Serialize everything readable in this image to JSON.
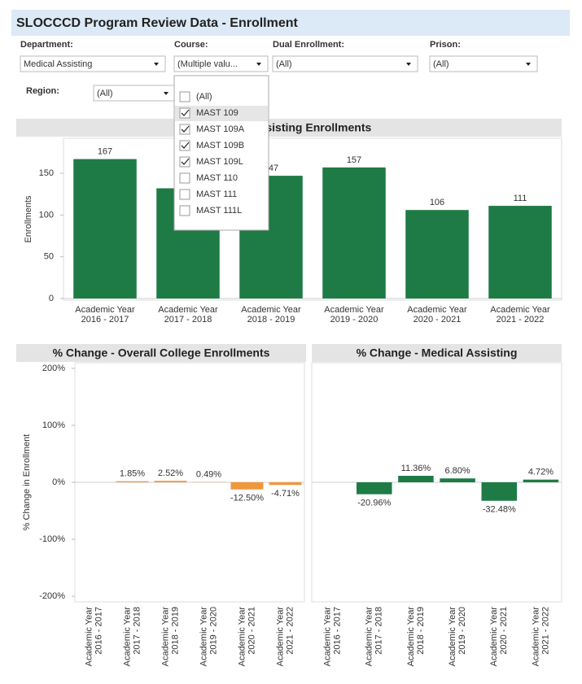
{
  "header": {
    "title": "SLOCCCD Program Review Data - Enrollment"
  },
  "filters": [
    {
      "label": "Department:",
      "value": "Medical Assisting"
    },
    {
      "label": "Course:",
      "value": "(Multiple valu..."
    },
    {
      "label": "Dual Enrollment:",
      "value": "(All)"
    },
    {
      "label": "Prison:",
      "value": "(All)"
    },
    {
      "label": "Region:",
      "value": "(All)"
    }
  ],
  "dropdown": {
    "items": [
      {
        "label": "(All)",
        "checked": false
      },
      {
        "label": "MAST 109",
        "checked": true
      },
      {
        "label": "MAST 109A",
        "checked": true
      },
      {
        "label": "MAST 109B",
        "checked": true
      },
      {
        "label": "MAST 109L",
        "checked": true
      },
      {
        "label": "MAST 110",
        "checked": false
      },
      {
        "label": "MAST 111",
        "checked": false
      },
      {
        "label": "MAST 111L",
        "checked": false
      }
    ]
  },
  "chart_data": [
    {
      "type": "bar",
      "title": "Medical Assisting Enrollments",
      "y_label": "Enrollments",
      "categories": [
        [
          "Academic Year",
          "2016 - 2017"
        ],
        [
          "Academic Year",
          "2017 - 2018"
        ],
        [
          "Academic Year",
          "2018 - 2019"
        ],
        [
          "Academic Year",
          "2019 - 2020"
        ],
        [
          "Academic Year",
          "2020 - 2021"
        ],
        [
          "Academic Year",
          "2021 - 2022"
        ]
      ],
      "values": [
        167,
        132,
        147,
        157,
        106,
        111
      ],
      "color": "#1e7b45",
      "ylim": [
        0,
        190
      ],
      "yticks": [
        0,
        50,
        100,
        150
      ],
      "grid": false
    },
    {
      "type": "bar",
      "title": "% Change - Overall College Enrollments",
      "y_label": "% Change in Enrollment",
      "categories": [
        [
          "Academic Year",
          "2016 - 2017"
        ],
        [
          "Academic Year",
          "2017 - 2018"
        ],
        [
          "Academic Year",
          "2018 - 2019"
        ],
        [
          "Academic Year",
          "2019 - 2020"
        ],
        [
          "Academic Year",
          "2020 - 2021"
        ],
        [
          "Academic Year",
          "2021 - 2022"
        ]
      ],
      "values": [
        null,
        1.85,
        2.52,
        0.49,
        -12.5,
        -4.71
      ],
      "value_labels": [
        null,
        "1.85%",
        "2.52%",
        "0.49%",
        "-12.50%",
        "-4.71%"
      ],
      "color": "#f0963c",
      "ylim": [
        -207,
        207
      ],
      "yticks": [
        {
          "value": 200,
          "label": "200%"
        },
        {
          "value": 100,
          "label": "100%"
        },
        {
          "value": 0,
          "label": "0%"
        },
        {
          "value": -100,
          "label": "-100%"
        },
        {
          "value": -200,
          "label": "-200%"
        }
      ],
      "grid": false
    },
    {
      "type": "bar",
      "title": "% Change - Medical Assisting",
      "categories": [
        [
          "Academic Year",
          "2016 - 2017"
        ],
        [
          "Academic Year",
          "2017 - 2018"
        ],
        [
          "Academic Year",
          "2018 - 2019"
        ],
        [
          "Academic Year",
          "2019 - 2020"
        ],
        [
          "Academic Year",
          "2020 - 2021"
        ],
        [
          "Academic Year",
          "2021 - 2022"
        ]
      ],
      "values": [
        null,
        -20.96,
        11.36,
        6.8,
        -32.48,
        4.72
      ],
      "value_labels": [
        null,
        "-20.96%",
        "11.36%",
        "6.80%",
        "-32.48%",
        "4.72%"
      ],
      "color": "#1e7b45",
      "ylim": [
        -207,
        207
      ],
      "grid": false
    }
  ]
}
